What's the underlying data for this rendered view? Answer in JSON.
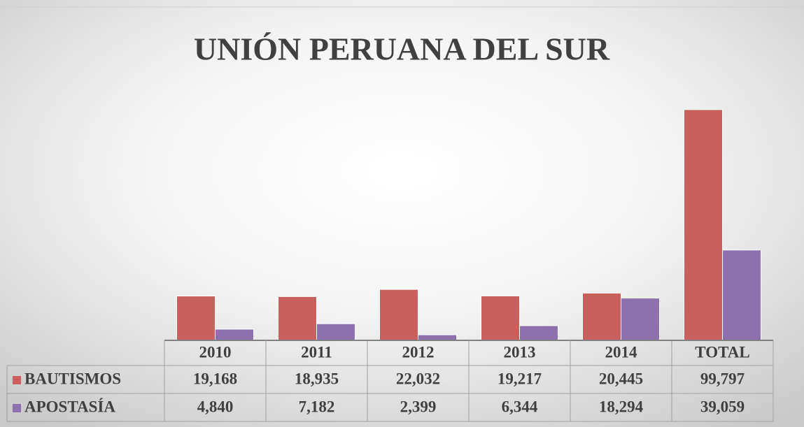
{
  "chart_data": {
    "type": "bar",
    "title": "UNIÓN PERUANA DEL SUR",
    "categories": [
      "2010",
      "2011",
      "2012",
      "2013",
      "2014",
      "TOTAL"
    ],
    "series": [
      {
        "name": "BAUTISMOS",
        "color": "#c8605d",
        "values": [
          19168,
          18935,
          22032,
          19217,
          20445,
          99797
        ],
        "value_labels": [
          "19,168",
          "18,935",
          "22,032",
          "19,217",
          "20,445",
          "99,797"
        ]
      },
      {
        "name": "APOSTASÍA",
        "color": "#8d71ae",
        "values": [
          4840,
          7182,
          2399,
          6344,
          18294,
          39059
        ],
        "value_labels": [
          "4,840",
          "7,182",
          "2,399",
          "6,344",
          "18,294",
          "39,059"
        ]
      }
    ],
    "ylim": [
      0,
      120000
    ]
  }
}
